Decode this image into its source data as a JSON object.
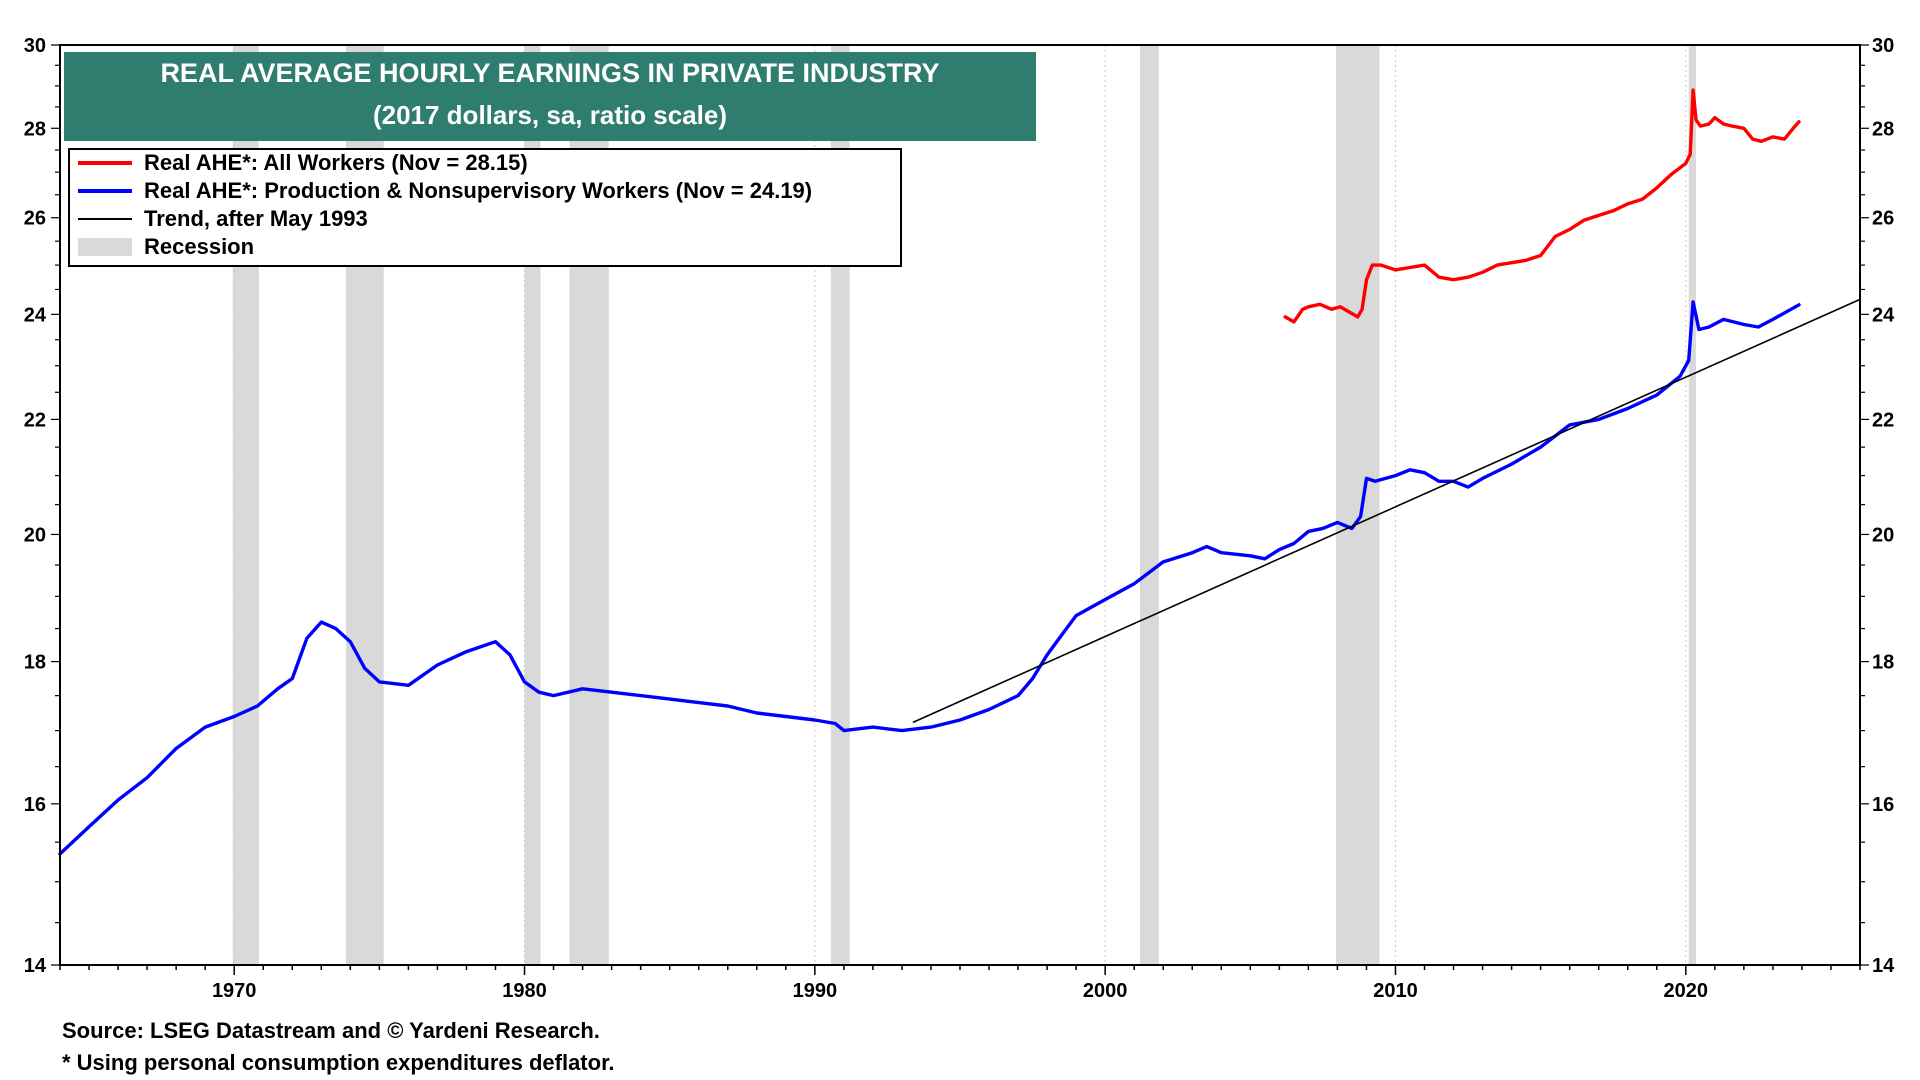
{
  "chart_data": {
    "type": "line",
    "scale": "log",
    "title": "REAL AVERAGE HOURLY EARNINGS IN PRIVATE INDUSTRY",
    "subtitle": "(2017 dollars, sa, ratio scale)",
    "xlim": [
      1964.0,
      2026.0
    ],
    "ylim": [
      14,
      30
    ],
    "x_ticks": [
      1970,
      1980,
      1990,
      2000,
      2010,
      2020
    ],
    "y_ticks": [
      14,
      16,
      18,
      20,
      22,
      24,
      26,
      28,
      30
    ],
    "legend": [
      {
        "label": "Real AHE*: All Workers (Nov = 28.15)",
        "color": "#ff0000",
        "kind": "line"
      },
      {
        "label": "Real AHE*: Production & Nonsupervisory Workers (Nov = 24.19)",
        "color": "#0000ff",
        "kind": "line"
      },
      {
        "label": "Trend, after May 1993",
        "color": "#000000",
        "kind": "thin"
      },
      {
        "label": "Recession",
        "color": "#d9d9d9",
        "kind": "block"
      }
    ],
    "recessions": [
      [
        1969.95,
        1970.85
      ],
      [
        1973.85,
        1975.15
      ],
      [
        1980.0,
        1980.55
      ],
      [
        1981.55,
        1982.9
      ],
      [
        1990.55,
        1991.2
      ],
      [
        2001.2,
        2001.85
      ],
      [
        2007.95,
        2009.45
      ],
      [
        2020.1,
        2020.35
      ]
    ],
    "series": [
      {
        "name": "Real AHE*: All Workers",
        "color": "#ff0000",
        "x": [
          2006.2,
          2006.5,
          2006.8,
          2007.0,
          2007.4,
          2007.8,
          2008.1,
          2008.4,
          2008.7,
          2008.85,
          2009.0,
          2009.2,
          2009.5,
          2010.0,
          2010.5,
          2011.0,
          2011.5,
          2012.0,
          2012.5,
          2013.0,
          2013.5,
          2014.0,
          2014.5,
          2015.0,
          2015.5,
          2016.0,
          2016.5,
          2017.0,
          2017.5,
          2018.0,
          2018.5,
          2019.0,
          2019.5,
          2020.0,
          2020.15,
          2020.25,
          2020.35,
          2020.5,
          2020.8,
          2021.0,
          2021.3,
          2021.6,
          2022.0,
          2022.3,
          2022.6,
          2023.0,
          2023.4,
          2023.7,
          2023.9
        ],
        "values": [
          23.95,
          23.85,
          24.1,
          24.15,
          24.2,
          24.1,
          24.15,
          24.05,
          23.95,
          24.1,
          24.7,
          25.0,
          25.0,
          24.9,
          24.95,
          25.0,
          24.75,
          24.7,
          24.75,
          24.85,
          25.0,
          25.05,
          25.1,
          25.2,
          25.6,
          25.75,
          25.95,
          26.05,
          26.15,
          26.3,
          26.4,
          26.65,
          26.95,
          27.2,
          27.4,
          28.9,
          28.2,
          28.05,
          28.1,
          28.25,
          28.1,
          28.05,
          28.0,
          27.75,
          27.7,
          27.8,
          27.75,
          28.0,
          28.15
        ]
      },
      {
        "name": "Real AHE*: Production & Nonsupervisory Workers",
        "color": "#0000ff",
        "x": [
          1964.0,
          1965.0,
          1966.0,
          1967.0,
          1968.0,
          1969.0,
          1970.0,
          1970.8,
          1971.5,
          1972.0,
          1972.5,
          1973.0,
          1973.5,
          1974.0,
          1974.5,
          1975.0,
          1976.0,
          1977.0,
          1978.0,
          1979.0,
          1979.5,
          1980.0,
          1980.5,
          1981.0,
          1982.0,
          1983.0,
          1984.0,
          1985.0,
          1986.0,
          1987.0,
          1988.0,
          1989.0,
          1990.0,
          1990.7,
          1991.0,
          1992.0,
          1993.0,
          1994.0,
          1995.0,
          1996.0,
          1997.0,
          1997.5,
          1998.0,
          1998.5,
          1999.0,
          2000.0,
          2001.0,
          2002.0,
          2003.0,
          2003.5,
          2004.0,
          2005.0,
          2005.5,
          2006.0,
          2006.5,
          2007.0,
          2007.5,
          2008.0,
          2008.5,
          2008.8,
          2009.0,
          2009.3,
          2010.0,
          2010.5,
          2011.0,
          2011.5,
          2012.0,
          2012.5,
          2013.0,
          2014.0,
          2015.0,
          2015.5,
          2016.0,
          2017.0,
          2018.0,
          2019.0,
          2019.8,
          2020.1,
          2020.25,
          2020.45,
          2020.8,
          2021.3,
          2022.0,
          2022.5,
          2023.0,
          2023.9
        ],
        "values": [
          15.35,
          15.7,
          16.05,
          16.35,
          16.75,
          17.05,
          17.2,
          17.35,
          17.6,
          17.75,
          18.35,
          18.6,
          18.5,
          18.3,
          17.9,
          17.7,
          17.65,
          17.95,
          18.15,
          18.3,
          18.1,
          17.7,
          17.55,
          17.5,
          17.6,
          17.55,
          17.5,
          17.45,
          17.4,
          17.35,
          17.25,
          17.2,
          17.15,
          17.1,
          17.0,
          17.05,
          17.0,
          17.05,
          17.15,
          17.3,
          17.5,
          17.75,
          18.1,
          18.4,
          18.7,
          18.95,
          19.2,
          19.55,
          19.7,
          19.8,
          19.7,
          19.65,
          19.6,
          19.75,
          19.85,
          20.05,
          20.1,
          20.2,
          20.1,
          20.3,
          20.95,
          20.9,
          21.0,
          21.1,
          21.05,
          20.9,
          20.9,
          20.8,
          20.95,
          21.2,
          21.5,
          21.7,
          21.9,
          22.0,
          22.2,
          22.45,
          22.8,
          23.1,
          24.25,
          23.7,
          23.75,
          23.9,
          23.8,
          23.75,
          23.9,
          24.19
        ]
      },
      {
        "name": "Trend, after May 1993",
        "color": "#000000",
        "x": [
          1993.4,
          2026.0
        ],
        "values": [
          17.12,
          24.3
        ]
      }
    ]
  },
  "footnotes": {
    "source": "Source: LSEG Datastream and © Yardeni Research.",
    "note": "* Using personal consumption expenditures deflator."
  }
}
